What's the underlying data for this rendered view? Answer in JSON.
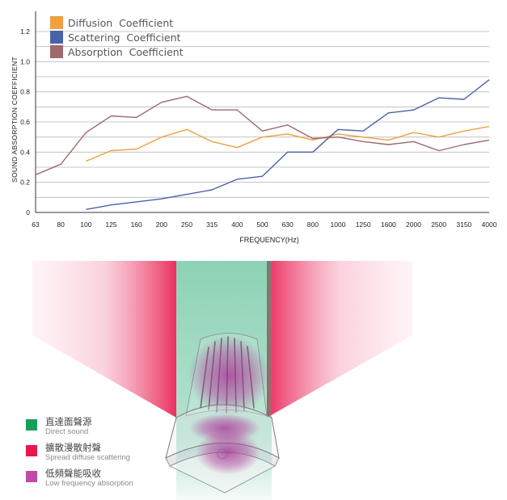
{
  "chart_data": {
    "type": "line",
    "xlabel": "FREQUENCY(Hz)",
    "ylabel": "SOUND ABSORPTION COEFFICIENT",
    "categories": [
      "63",
      "80",
      "100",
      "125",
      "160",
      "200",
      "250",
      "315",
      "400",
      "500",
      "630",
      "800",
      "1000",
      "1250",
      "1600",
      "2000",
      "2500",
      "3150",
      "4000"
    ],
    "y_ticks": [
      "0",
      "0.2",
      "0.4",
      "0.6",
      "0.8",
      "1.0",
      "1.2"
    ],
    "ylim": [
      0,
      1.3
    ],
    "grid": "horizontal",
    "legend_position": "top-left",
    "series": [
      {
        "name": "Diffusion  Coefficient",
        "color": "#f0a040",
        "values": [
          null,
          null,
          0.34,
          0.41,
          0.42,
          0.5,
          0.55,
          0.47,
          0.43,
          0.5,
          0.52,
          0.48,
          0.52,
          0.5,
          0.48,
          0.53,
          0.5,
          0.54,
          0.57
        ]
      },
      {
        "name": "Scattering  Coefficient",
        "color": "#4a62a8",
        "values": [
          null,
          null,
          0.02,
          0.05,
          0.07,
          0.09,
          0.12,
          0.15,
          0.22,
          0.24,
          0.4,
          0.4,
          0.55,
          0.54,
          0.66,
          0.68,
          0.76,
          0.75,
          0.88
        ]
      },
      {
        "name": "Absorption  Coefficient",
        "color": "#9e6a6e",
        "values": [
          0.25,
          0.32,
          0.53,
          0.64,
          0.63,
          0.73,
          0.77,
          0.68,
          0.68,
          0.54,
          0.58,
          0.49,
          0.5,
          0.47,
          0.45,
          0.47,
          0.41,
          0.45,
          0.48
        ]
      }
    ]
  },
  "diagram_legend": [
    {
      "zh": "直達面聲源",
      "en": "Direct sound",
      "color": "#17a05c"
    },
    {
      "zh": "擴散漫散射聲",
      "en": "Spread diffuse scattering",
      "color": "#e8184e"
    },
    {
      "zh": "低頻聲能吸收",
      "en": "Low frequency absorption",
      "color": "#c04aa6"
    }
  ],
  "colors": {
    "direct": "#2fae78",
    "scatter": "#e8184e",
    "absorb": "#b03a9a"
  }
}
